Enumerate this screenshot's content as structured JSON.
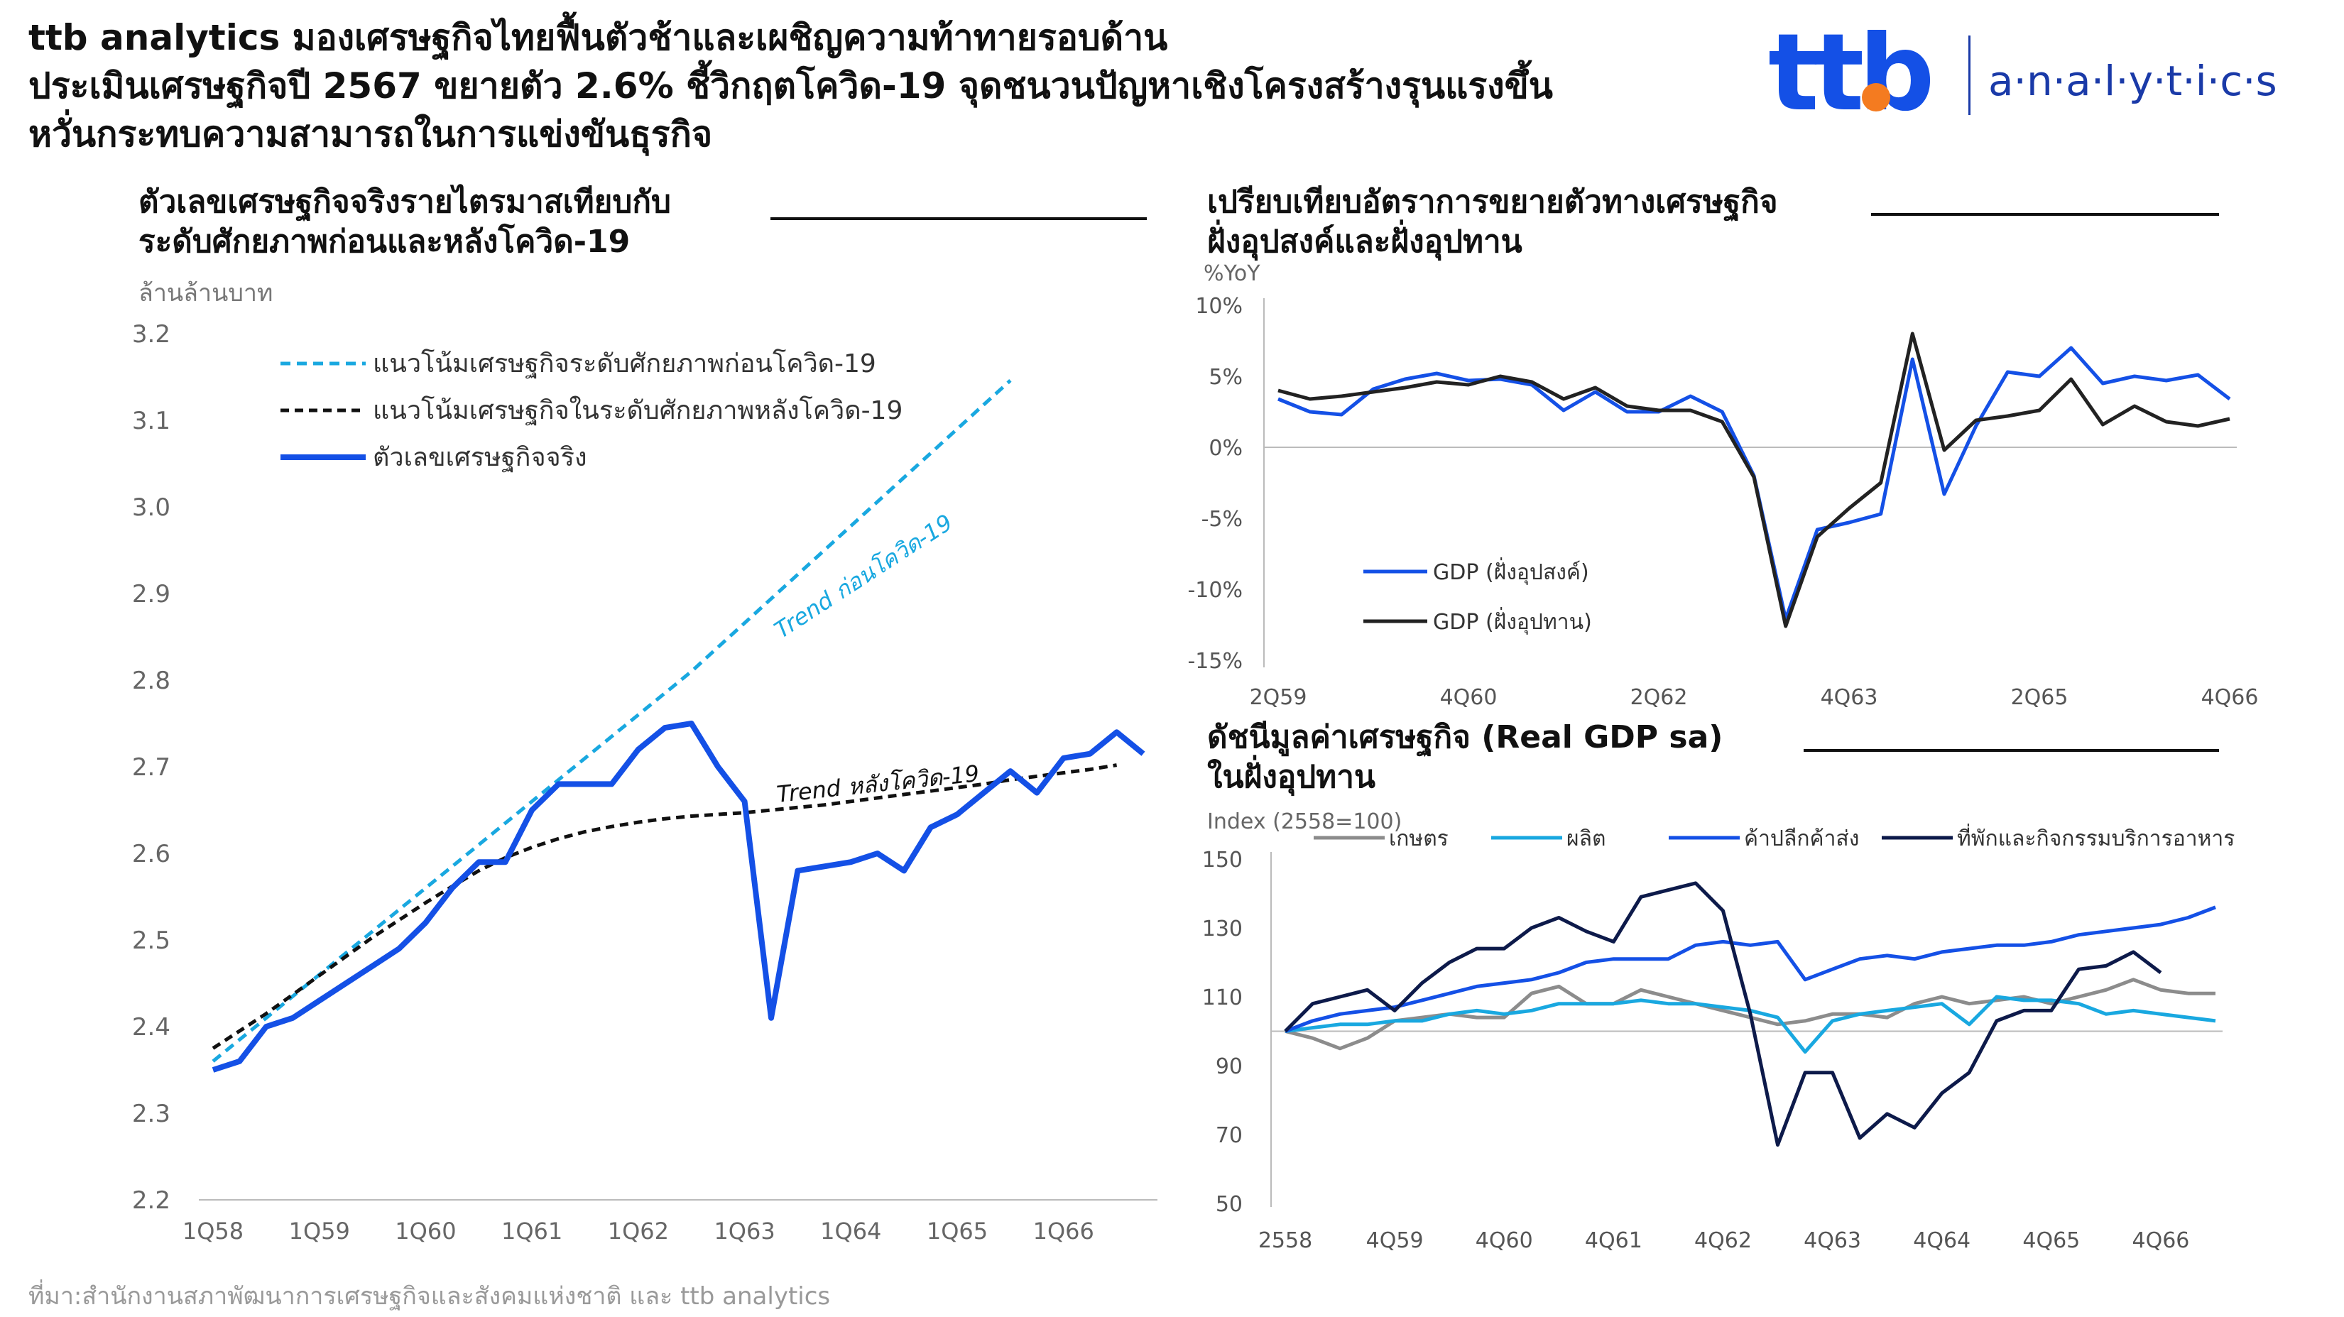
{
  "header": {
    "line1": "ttb analytics มองเศรษฐกิจไทยฟื้นตัวช้าและเผชิญความท้าทายรอบด้าน",
    "line2": "ประเมินเศรษฐกิจปี 2567 ขยายตัว 2.6% ชี้วิกฤตโควิด-19 จุดชนวนปัญหาเชิงโครงสร้างรุนแรงขึ้น",
    "line3": "หวั่นกระทบความสามารถในการแข่งขันธุรกิจ"
  },
  "logo": {
    "brand": "ttb",
    "name": "a·n·a·l·y·t·i·c·s",
    "colors": {
      "t": "#1450e6",
      "b": "#1a3aa8",
      "accent": "#f47b20",
      "text": "#1a3aa8"
    }
  },
  "source": "ที่มา:สำนักงานสภาพัฒนาการเศรษฐกิจและสังคมแห่งชาติ และ ttb analytics",
  "chart_data": [
    {
      "id": "left",
      "type": "line",
      "title_line1": "ตัวเลขเศรษฐกิจจริงรายไตรมาสเทียบกับ",
      "title_line2": "ระดับศักยภาพก่อนและหลังโควิด-19",
      "ylabel": "ล้านล้านบาท",
      "ylim": [
        2.2,
        3.2
      ],
      "yticks": [
        "3.2",
        "3.1",
        "3.0",
        "2.9",
        "2.8",
        "2.7",
        "2.6",
        "2.5",
        "2.4",
        "2.3",
        "2.2"
      ],
      "xticks": [
        "1Q58",
        "1Q59",
        "1Q60",
        "1Q61",
        "1Q62",
        "1Q63",
        "1Q64",
        "1Q65",
        "1Q66"
      ],
      "legend": [
        "แนวโน้มเศรษฐกิจระดับศักยภาพก่อนโควิด-19",
        "แนวโน้มเศรษฐกิจในระดับศักยภาพหลังโควิด-19",
        "ตัวเลขเศรษฐกิจจริง"
      ],
      "annotations": {
        "pre": "Trend ก่อนโควิด-19",
        "post": "Trend หลังโควิด-19"
      },
      "colors": {
        "pre": "#19a8e0",
        "post": "#111111",
        "actual": "#1450e6"
      },
      "series": [
        {
          "key": "actual",
          "values": [
            2.35,
            2.36,
            2.4,
            2.41,
            2.43,
            2.45,
            2.47,
            2.49,
            2.52,
            2.56,
            2.59,
            2.59,
            2.65,
            2.68,
            2.68,
            2.68,
            2.72,
            2.745,
            2.75,
            2.7,
            2.66,
            2.41,
            2.58,
            2.585,
            2.59,
            2.6,
            2.58,
            2.63,
            2.645,
            2.67,
            2.695,
            2.67,
            2.71,
            2.715,
            2.74,
            2.715
          ]
        },
        {
          "key": "pre",
          "values": [
            2.36,
            2.385,
            2.41,
            2.435,
            2.46,
            2.485,
            2.51,
            2.535,
            2.56,
            2.585,
            2.61,
            2.635,
            2.66,
            2.685,
            2.71,
            2.735,
            2.76,
            2.785,
            2.81,
            2.838,
            2.866,
            2.894,
            2.922,
            2.95,
            2.978,
            3.006,
            3.034,
            3.062,
            3.09,
            3.118,
            3.146
          ]
        },
        {
          "key": "post",
          "values": [
            2.375,
            2.395,
            2.415,
            2.437,
            2.459,
            2.481,
            2.503,
            2.523,
            2.543,
            2.562,
            2.58,
            2.595,
            2.607,
            2.617,
            2.625,
            2.631,
            2.636,
            2.64,
            2.643,
            2.645,
            2.647,
            2.65,
            2.653,
            2.656,
            2.66,
            2.664,
            2.668,
            2.672,
            2.676,
            2.68,
            2.685,
            2.689,
            2.693,
            2.697,
            2.702
          ]
        }
      ]
    },
    {
      "id": "topright",
      "type": "line",
      "title_line1": "เปรียบเทียบอัตราการขยายตัวทางเศรษฐกิจ",
      "title_line2": "ฝั่งอุปสงค์และฝั่งอุปทาน",
      "ylabel": "%YoY",
      "ylim": [
        -15,
        10
      ],
      "yticks": [
        {
          "v": 10,
          "t": "10%"
        },
        {
          "v": 5,
          "t": "5%"
        },
        {
          "v": 0,
          "t": "0%"
        },
        {
          "v": -5,
          "t": "-5%"
        },
        {
          "v": -10,
          "t": "-10%"
        },
        {
          "v": -15,
          "t": "-15%"
        }
      ],
      "xticks": [
        "2Q59",
        "4Q60",
        "2Q62",
        "4Q63",
        "2Q65",
        "4Q66"
      ],
      "colors": {
        "demand": "#1450e6",
        "supply": "#222222"
      },
      "series": [
        {
          "name": "GDP (ฝั่งอุปสงค์)",
          "key": "demand",
          "values": [
            3.4,
            2.5,
            2.3,
            4.1,
            4.8,
            5.2,
            4.7,
            4.8,
            4.4,
            2.6,
            3.9,
            2.5,
            2.5,
            3.6,
            2.5,
            -2.0,
            -12.1,
            -5.8,
            -5.3,
            -4.7,
            6.2,
            -3.3,
            1.5,
            5.3,
            5.0,
            7.0,
            4.5,
            5.0,
            4.7,
            5.1,
            3.4
          ]
        },
        {
          "name": "GDP (ฝั่งอุปทาน)",
          "key": "supply",
          "values": [
            4.0,
            3.4,
            3.6,
            3.9,
            4.2,
            4.6,
            4.4,
            5.0,
            4.6,
            3.4,
            4.2,
            2.9,
            2.6,
            2.6,
            1.8,
            -2.1,
            -12.6,
            -6.3,
            -4.3,
            -2.5,
            8.0,
            -0.2,
            1.9,
            2.2,
            2.6,
            4.8,
            1.6,
            2.9,
            1.8,
            1.5,
            2.0
          ]
        }
      ]
    },
    {
      "id": "bottomright",
      "type": "line",
      "title_line1": "ดัชนีมูลค่าเศรษฐกิจ (Real GDP sa)",
      "title_line2": "ในฝั่งอุปทาน",
      "ylabel": "Index (2558=100)",
      "ylim": [
        50,
        150
      ],
      "yticks": [
        150,
        130,
        110,
        90,
        70,
        50
      ],
      "xticks": [
        "2558",
        "4Q59",
        "4Q60",
        "4Q61",
        "4Q62",
        "4Q63",
        "4Q64",
        "4Q65",
        "4Q66"
      ],
      "colors": {
        "agri": "#8c8c8c",
        "mfg": "#19a8e0",
        "retail": "#1450e6",
        "hotel": "#0d1a4a"
      },
      "series": [
        {
          "name": "เกษตร",
          "key": "agri",
          "values": [
            100,
            98,
            95,
            98,
            103,
            104,
            105,
            104,
            104,
            111,
            113,
            108,
            108,
            112,
            110,
            108,
            106,
            104,
            102,
            103,
            105,
            105,
            104,
            108,
            110,
            108,
            109,
            110,
            108,
            110,
            112,
            115,
            112,
            111,
            111
          ]
        },
        {
          "name": "ผลิต",
          "key": "mfg",
          "values": [
            100,
            101,
            102,
            102,
            103,
            103,
            105,
            106,
            105,
            106,
            108,
            108,
            108,
            109,
            108,
            108,
            107,
            106,
            104,
            94,
            103,
            105,
            106,
            107,
            108,
            102,
            110,
            109,
            109,
            108,
            105,
            106,
            105,
            104,
            103
          ]
        },
        {
          "name": "ค้าปลีกค้าส่ง",
          "key": "retail",
          "values": [
            100,
            103,
            105,
            106,
            107,
            109,
            111,
            113,
            114,
            115,
            117,
            120,
            121,
            121,
            121,
            125,
            126,
            125,
            126,
            115,
            118,
            121,
            122,
            121,
            123,
            124,
            125,
            125,
            126,
            128,
            129,
            130,
            131,
            133,
            136
          ]
        },
        {
          "name": "ที่พักและกิจกรรมบริการอาหาร",
          "key": "hotel",
          "values": [
            100,
            108,
            110,
            112,
            106,
            114,
            120,
            124,
            124,
            130,
            133,
            129,
            126,
            139,
            141,
            143,
            135,
            105,
            67,
            88,
            88,
            69,
            76,
            72,
            82,
            88,
            103,
            106,
            106,
            118,
            119,
            123,
            117
          ]
        }
      ]
    }
  ]
}
